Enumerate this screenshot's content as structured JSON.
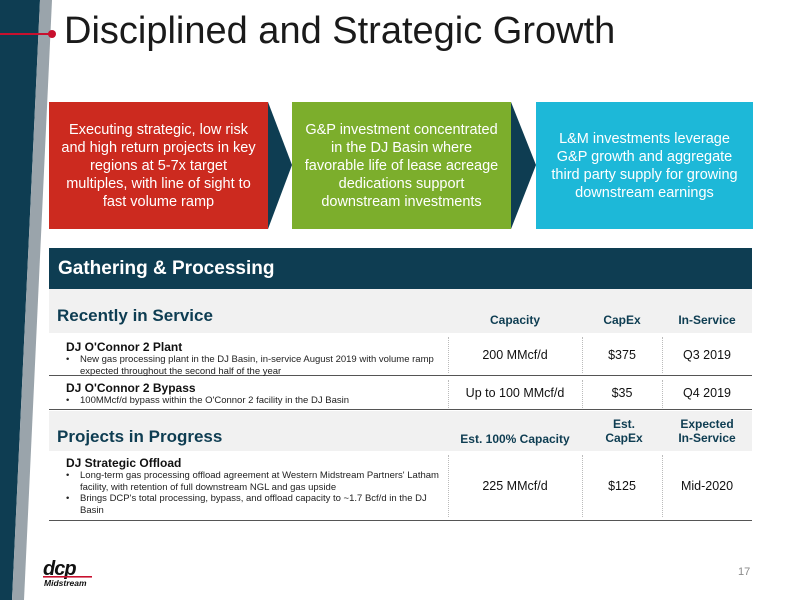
{
  "slide": {
    "title": "Disciplined and Strategic Growth",
    "page_number": "17"
  },
  "callouts": [
    {
      "text": "Executing strategic, low risk and high return projects in key regions at 5-7x target multiples, with line of sight to fast volume ramp",
      "color": "#cc2a1f"
    },
    {
      "text": "G&P investment concentrated in the DJ Basin where favorable life of lease acreage dedications support downstream investments",
      "color": "#7cae2c"
    },
    {
      "text": "L&M investments leverage G&P growth and aggregate third party supply for growing downstream earnings",
      "color": "#1db8d8"
    }
  ],
  "section": {
    "title": "Gathering & Processing",
    "color": "#0e3d52"
  },
  "recently_in_service": {
    "heading": "Recently in Service",
    "columns": [
      "Capacity",
      "CapEx",
      "In-Service"
    ],
    "rows": [
      {
        "name": "DJ O'Connor 2 Plant",
        "bullets": [
          "New gas processing plant in the DJ Basin, in-service August 2019 with volume ramp expected throughout the second half of the year"
        ],
        "capacity": "200 MMcf/d",
        "capex": "$375",
        "in_service": "Q3 2019"
      },
      {
        "name": "DJ O'Connor 2 Bypass",
        "bullets": [
          "100MMcf/d bypass within the O'Connor 2 facility in the DJ Basin"
        ],
        "capacity": "Up to 100 MMcf/d",
        "capex": "$35",
        "in_service": "Q4 2019"
      }
    ]
  },
  "projects_in_progress": {
    "heading": "Projects in Progress",
    "columns": [
      "Est. 100% Capacity",
      "Est. CapEx",
      "Expected In-Service"
    ],
    "rows": [
      {
        "name": "DJ Strategic Offload",
        "bullets": [
          "Long-term gas processing offload agreement at Western Midstream Partners' Latham facility, with retention of full downstream NGL and gas upside",
          "Brings DCP's total processing, bypass, and offload capacity to ~1.7 Bcf/d in the DJ Basin"
        ],
        "capacity": "225 MMcf/d",
        "capex": "$125",
        "in_service": "Mid-2020"
      }
    ]
  },
  "logo": {
    "mark": "dcp",
    "sub": "Midstream"
  }
}
